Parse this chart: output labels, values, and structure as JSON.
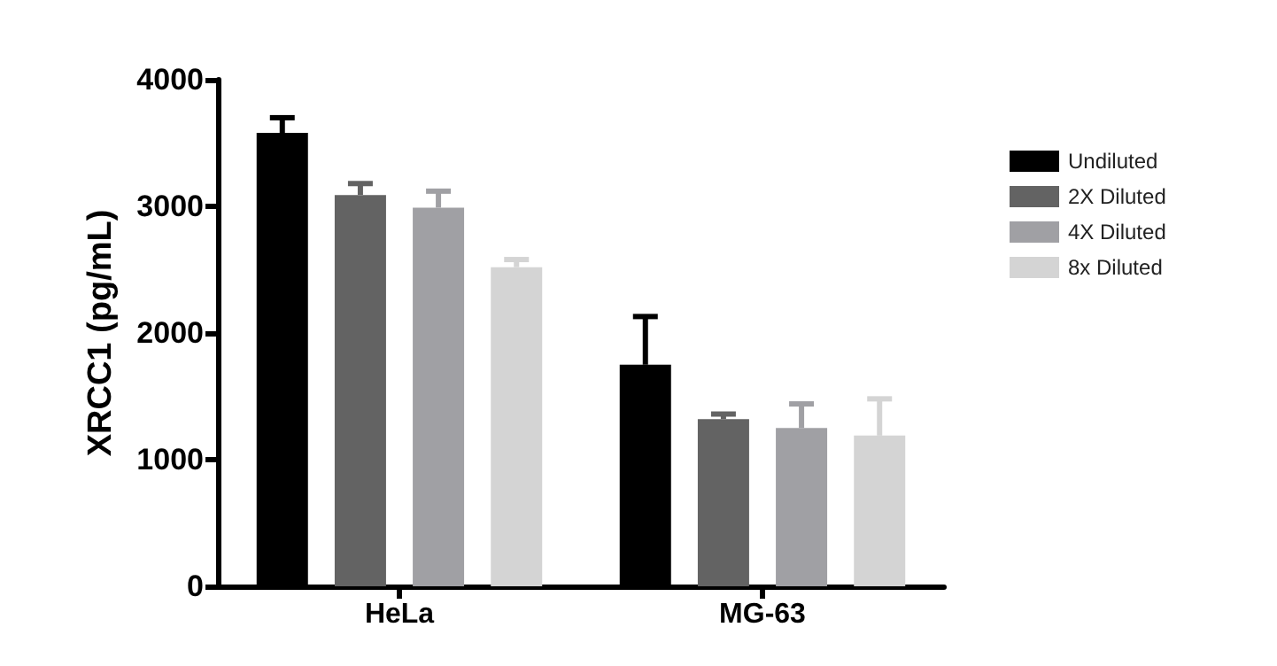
{
  "chart_data": {
    "type": "bar",
    "ylabel": "XRCC1 (pg/mL)",
    "categories": [
      "HeLa",
      "MG-63"
    ],
    "series": [
      {
        "name": "Undiluted",
        "color": "#000000",
        "values": [
          3580,
          1750
        ],
        "errors": [
          [
            3580,
            3700
          ],
          [
            1750,
            2130
          ]
        ]
      },
      {
        "name": "2X Diluted",
        "color": "#636363",
        "values": [
          3090,
          1320
        ],
        "errors": [
          [
            3090,
            3180
          ],
          [
            1320,
            1360
          ]
        ]
      },
      {
        "name": "4X Diluted",
        "color": "#a0a0a4",
        "values": [
          2990,
          1250
        ],
        "errors": [
          [
            2990,
            3120
          ],
          [
            1250,
            1440
          ]
        ]
      },
      {
        "name": "8x Diluted",
        "color": "#d4d4d4",
        "values": [
          2520,
          1190
        ],
        "errors": [
          [
            2520,
            2580
          ],
          [
            1190,
            1480
          ]
        ]
      }
    ],
    "ylim": [
      0,
      4000
    ],
    "yticks": [
      0,
      1000,
      2000,
      3000,
      4000
    ],
    "grid": false,
    "legend": "right"
  }
}
